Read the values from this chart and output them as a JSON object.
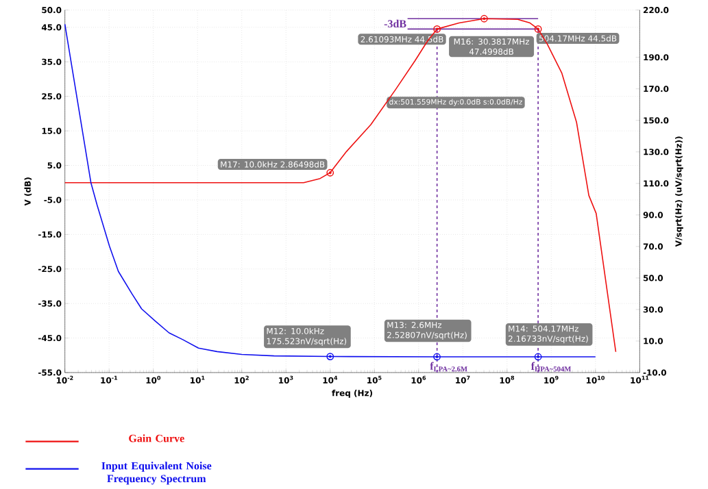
{
  "chart_data": {
    "type": "line",
    "xlabel": "freq (Hz)",
    "ylabel": "V (dB)",
    "y2label": "V/sqrt(Hz) (uV/sqrt(Hz))",
    "log": "x",
    "grid": true,
    "legend": "bottom left",
    "xlim": [
      0.01,
      100000000000
    ],
    "ylim": [
      -55,
      50
    ],
    "y2lim": [
      -10,
      220
    ],
    "xticks": [
      {
        "value": 0.01,
        "label": "10$^{-2}$"
      },
      {
        "value": 0.1,
        "label": "10$^{-1}$"
      },
      {
        "value": 1,
        "label": "10$^{0}$"
      },
      {
        "value": 10,
        "label": "10$^{1}$"
      },
      {
        "value": 100,
        "label": "10$^{2}$"
      },
      {
        "value": 1000,
        "label": "10$^{3}$"
      },
      {
        "value": 10000,
        "label": "10$^{4}$"
      },
      {
        "value": 100000,
        "label": "10$^{5}$"
      },
      {
        "value": 1000000,
        "label": "10$^{6}$"
      },
      {
        "value": 10000000,
        "label": "10$^{7}$"
      },
      {
        "value": 100000000,
        "label": "10$^{8}$"
      },
      {
        "value": 1000000000,
        "label": "10$^{9}$"
      },
      {
        "value": 10000000000,
        "label": "10$^{10}$"
      },
      {
        "value": 100000000000,
        "label": "10$^{11}$"
      }
    ],
    "yticks": [
      {
        "value": 50,
        "label": "50.0"
      },
      {
        "value": 45,
        "label": "45.0"
      },
      {
        "value": 35,
        "label": "35.0"
      },
      {
        "value": 25,
        "label": "25.0"
      },
      {
        "value": 15,
        "label": "15.0"
      },
      {
        "value": 5,
        "label": "5.0"
      },
      {
        "value": -5,
        "label": "-5.0"
      },
      {
        "value": -15,
        "label": "-15.0"
      },
      {
        "value": -25,
        "label": "-25.0"
      },
      {
        "value": -35,
        "label": "-35.0"
      },
      {
        "value": -45,
        "label": "-45.0"
      },
      {
        "value": -55,
        "label": "-55.0"
      }
    ],
    "y2ticks": [
      {
        "value": 220,
        "label": "220.0"
      },
      {
        "value": 190,
        "label": "190.0"
      },
      {
        "value": 170,
        "label": "170.0"
      },
      {
        "value": 150,
        "label": "150.0"
      },
      {
        "value": 130,
        "label": "130.0"
      },
      {
        "value": 110,
        "label": "110.0"
      },
      {
        "value": 90,
        "label": "90.0"
      },
      {
        "value": 70,
        "label": "70.0"
      },
      {
        "value": 50,
        "label": "50.0"
      },
      {
        "value": 30,
        "label": "30.0"
      },
      {
        "value": 10,
        "label": "10.0"
      },
      {
        "value": -10,
        "label": "-10.0"
      }
    ],
    "series": [
      {
        "name": "Gain Curve",
        "color": "#ee1111",
        "x": [
          0.01,
          1000,
          2511,
          5900,
          10000,
          23300,
          83000,
          295000,
          828000,
          1567000,
          2610930,
          8220000,
          30381700,
          175000000,
          331000000,
          504170000,
          809000000,
          1738000000,
          3730000000,
          7080000000,
          10370000000,
          28800000000
        ],
        "values": [
          0,
          0,
          0,
          1.2,
          2.9,
          9.0,
          16.8,
          26.8,
          35.3,
          40.9,
          44.5,
          46.25,
          47.5,
          47.3,
          46.25,
          44.5,
          40.2,
          31.7,
          17.5,
          -3.7,
          -8.9,
          -49.0
        ]
      },
      {
        "name": "Input Equivalent Noise Frequency Spectrum",
        "axis": "y2",
        "color": "#1010ee",
        "x": [
          0.01,
          0.0388,
          0.0536,
          0.102,
          0.162,
          0.33,
          0.544,
          1.11,
          2.27,
          4.64,
          10.5,
          27.7,
          100,
          536,
          10000,
          2610930,
          504170000,
          10000000000
        ],
        "values": [
          211,
          110.5,
          96.2,
          70.2,
          54.2,
          39.9,
          30.4,
          22.6,
          15.2,
          10.9,
          5.5,
          3.3,
          1.5,
          0.6,
          0.18,
          0.003,
          0.002,
          0.002
        ]
      },
      {
        "type": "scatter",
        "marker": "circle",
        "color": "#ee1111",
        "x": [
          10000,
          2610930,
          30381700,
          504170000
        ],
        "values": [
          2.86498,
          44.5,
          47.4998,
          44.5
        ],
        "value_labels": [
          "M17: 10.0kHz 2.86498dB",
          "2.61093MHz 44.5dB",
          "M16: 30.3817MHz 47.4998dB",
          "504.17MHz 44.5dB"
        ]
      },
      {
        "type": "scatter",
        "marker": "circle",
        "axis": "y2",
        "color": "#1010ee",
        "x": [
          10000,
          2600000,
          504170000
        ],
        "values": [
          0.175523,
          0.00252807,
          0.00216733
        ],
        "value_labels": [
          "M12: 10.0kHz 175.523nV/sqrt(Hz)",
          "M13: 2.6MHz 2.52807nV/sqrt(Hz)",
          "M14: 504.17MHz 2.16733nV/sqrt(Hz)"
        ]
      }
    ],
    "ref_lines": [
      {
        "axis": "y",
        "value": 47.4998,
        "label": "-3dB",
        "color": "#7030a0",
        "line_style": "solid"
      },
      {
        "axis": "y",
        "value": 44.5,
        "color": "#7030a0",
        "line_style": "solid"
      },
      {
        "axis": "x",
        "value": 2610930,
        "label": "f$_{LPA~2.6M}$",
        "color": "#7030a0",
        "line_style": "dashed"
      },
      {
        "axis": "x",
        "value": 504170000,
        "label": "f$_{HPA~504M}$",
        "color": "#7030a0",
        "line_style": "dashed"
      }
    ],
    "annotations": [
      "dx:501.559MHz dy:0.0dB s:0.0dB/Hz"
    ]
  }
}
